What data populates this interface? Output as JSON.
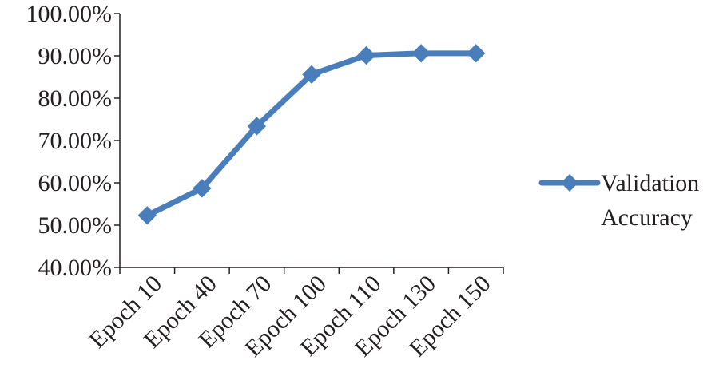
{
  "chart_data": {
    "type": "line",
    "title": "",
    "xlabel": "",
    "ylabel": "",
    "categories": [
      "Epoch 10",
      "Epoch 40",
      "Epoch 70",
      "Epoch 100",
      "Epoch 110",
      "Epoch 130",
      "Epoch 150"
    ],
    "series": [
      {
        "name": "Validation Accuracy",
        "name_lines": [
          "Validation",
          "Accuracy"
        ],
        "values": [
          52.3,
          58.7,
          73.4,
          85.6,
          90.1,
          90.6,
          90.6
        ],
        "color": "#4a7ebb",
        "marker": "diamond"
      }
    ],
    "ylim": [
      40,
      100
    ],
    "yticks": [
      40,
      50,
      60,
      70,
      80,
      90,
      100
    ],
    "ytick_labels": [
      "40.00%",
      "50.00%",
      "60.00%",
      "70.00%",
      "80.00%",
      "90.00%",
      "100.00%"
    ],
    "grid": false,
    "legend_position": "right"
  }
}
